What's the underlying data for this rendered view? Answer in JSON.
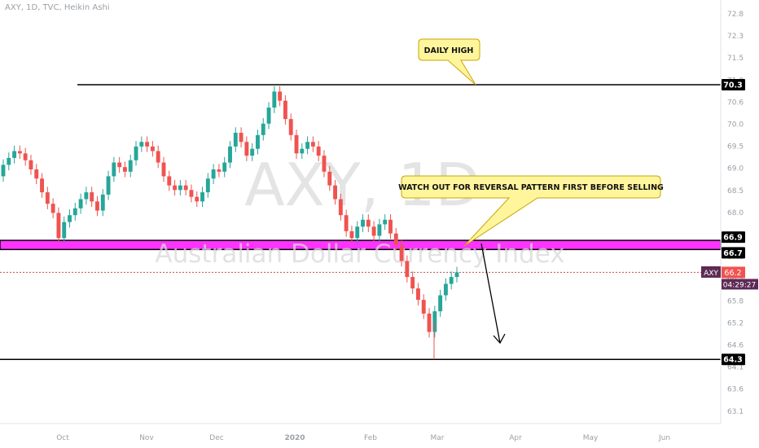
{
  "header": {
    "symbol_line": "AXY, 1D, TVC, Heikin Ashi"
  },
  "watermark": {
    "big": "AXY, 1D",
    "sub": "Australian Dollar Currency Index"
  },
  "annotations": {
    "daily_high": "DAILY HIGH",
    "reversal_note": "WATCH OUT FOR REVERSAL PATTERN FIRST BEFORE SELLING"
  },
  "price_tags": {
    "symbol": "AXY",
    "last": "66.2",
    "countdown": "04:29:27",
    "resistance_top": "66.9",
    "resistance_bottom": "66.7",
    "high": "70.3",
    "low": "64.3"
  },
  "colors": {
    "bull": "#26a69a",
    "bear": "#ef5350",
    "zone": "#ff33ff",
    "callout_fill": "#fff59d",
    "callout_border": "#c9a600",
    "last_tag": "#ef5350",
    "countdown_tag": "#5d2a55",
    "symbol_tag": "#5d2a55"
  },
  "chart_data": {
    "type": "candlestick",
    "title": "AXY, 1D, TVC, Heikin Ashi",
    "y_ticks": [
      "72.8",
      "72.3",
      "71.5",
      "71.0",
      "70.6",
      "70.0",
      "69.5",
      "69.0",
      "68.5",
      "68.0",
      "67.5",
      "67.0",
      "66.3",
      "65.8",
      "65.2",
      "64.6",
      "64.1",
      "63.6",
      "63.1"
    ],
    "x_ticks": [
      "Oct",
      "Nov",
      "Dec",
      "2020",
      "Feb",
      "Mar",
      "Apr",
      "May",
      "Jun"
    ],
    "ylim": [
      63.0,
      73.0
    ],
    "levels": [
      {
        "name": "daily-high",
        "value": 70.3
      },
      {
        "name": "resistance-top",
        "value": 66.9
      },
      {
        "name": "resistance-bottom",
        "value": 66.7
      },
      {
        "name": "support-low",
        "value": 64.3
      },
      {
        "name": "last-price",
        "value": 66.2
      }
    ],
    "candles": [
      {
        "o": 68.3,
        "c": 68.55
      },
      {
        "o": 68.55,
        "c": 68.7
      },
      {
        "o": 68.7,
        "c": 68.85
      },
      {
        "o": 68.85,
        "c": 68.8
      },
      {
        "o": 68.8,
        "c": 68.65
      },
      {
        "o": 68.65,
        "c": 68.45
      },
      {
        "o": 68.45,
        "c": 68.25
      },
      {
        "o": 68.25,
        "c": 67.95
      },
      {
        "o": 67.95,
        "c": 67.7
      },
      {
        "o": 67.7,
        "c": 67.5
      },
      {
        "o": 67.5,
        "c": 66.95
      },
      {
        "o": 66.95,
        "c": 67.3
      },
      {
        "o": 67.3,
        "c": 67.45
      },
      {
        "o": 67.45,
        "c": 67.6
      },
      {
        "o": 67.6,
        "c": 67.8
      },
      {
        "o": 67.8,
        "c": 67.95
      },
      {
        "o": 67.95,
        "c": 67.75
      },
      {
        "o": 67.75,
        "c": 67.55
      },
      {
        "o": 67.55,
        "c": 67.9
      },
      {
        "o": 67.9,
        "c": 68.3
      },
      {
        "o": 68.3,
        "c": 68.6
      },
      {
        "o": 68.6,
        "c": 68.5
      },
      {
        "o": 68.5,
        "c": 68.4
      },
      {
        "o": 68.4,
        "c": 68.65
      },
      {
        "o": 68.65,
        "c": 68.95
      },
      {
        "o": 68.95,
        "c": 69.05
      },
      {
        "o": 69.05,
        "c": 68.95
      },
      {
        "o": 68.95,
        "c": 68.85
      },
      {
        "o": 68.85,
        "c": 68.6
      },
      {
        "o": 68.6,
        "c": 68.3
      },
      {
        "o": 68.3,
        "c": 68.1
      },
      {
        "o": 68.1,
        "c": 68.0
      },
      {
        "o": 68.0,
        "c": 68.1
      },
      {
        "o": 68.1,
        "c": 68.0
      },
      {
        "o": 68.0,
        "c": 67.85
      },
      {
        "o": 67.85,
        "c": 67.75
      },
      {
        "o": 67.75,
        "c": 67.95
      },
      {
        "o": 67.95,
        "c": 68.25
      },
      {
        "o": 68.25,
        "c": 68.45
      },
      {
        "o": 68.45,
        "c": 68.4
      },
      {
        "o": 68.4,
        "c": 68.6
      },
      {
        "o": 68.6,
        "c": 68.95
      },
      {
        "o": 68.95,
        "c": 69.25
      },
      {
        "o": 69.25,
        "c": 69.05
      },
      {
        "o": 69.05,
        "c": 68.75
      },
      {
        "o": 68.75,
        "c": 68.9
      },
      {
        "o": 68.9,
        "c": 69.2
      },
      {
        "o": 69.2,
        "c": 69.45
      },
      {
        "o": 69.45,
        "c": 69.8
      },
      {
        "o": 69.8,
        "c": 70.15
      },
      {
        "o": 70.15,
        "c": 69.95
      },
      {
        "o": 69.95,
        "c": 69.55
      },
      {
        "o": 69.55,
        "c": 69.2
      },
      {
        "o": 69.2,
        "c": 68.8
      },
      {
        "o": 68.8,
        "c": 68.9
      },
      {
        "o": 68.9,
        "c": 69.05
      },
      {
        "o": 69.05,
        "c": 68.95
      },
      {
        "o": 68.95,
        "c": 68.75
      },
      {
        "o": 68.75,
        "c": 68.4
      },
      {
        "o": 68.4,
        "c": 68.1
      },
      {
        "o": 68.1,
        "c": 67.8
      },
      {
        "o": 67.8,
        "c": 67.45
      },
      {
        "o": 67.45,
        "c": 67.1
      },
      {
        "o": 67.1,
        "c": 66.95
      },
      {
        "o": 66.95,
        "c": 67.2
      },
      {
        "o": 67.2,
        "c": 67.35
      },
      {
        "o": 67.35,
        "c": 67.2
      },
      {
        "o": 67.2,
        "c": 67.0
      },
      {
        "o": 67.0,
        "c": 67.25
      },
      {
        "o": 67.25,
        "c": 67.35
      },
      {
        "o": 67.35,
        "c": 67.05
      },
      {
        "o": 67.05,
        "c": 66.8
      },
      {
        "o": 66.8,
        "c": 66.45
      },
      {
        "o": 66.45,
        "c": 66.1
      },
      {
        "o": 66.1,
        "c": 65.85
      },
      {
        "o": 65.85,
        "c": 65.6
      },
      {
        "o": 65.6,
        "c": 65.3
      },
      {
        "o": 65.3,
        "c": 64.9
      },
      {
        "o": 64.9,
        "c": 65.35
      },
      {
        "o": 65.35,
        "c": 65.7
      },
      {
        "o": 65.7,
        "c": 65.95
      },
      {
        "o": 65.95,
        "c": 66.1
      },
      {
        "o": 66.1,
        "c": 66.2
      }
    ]
  }
}
